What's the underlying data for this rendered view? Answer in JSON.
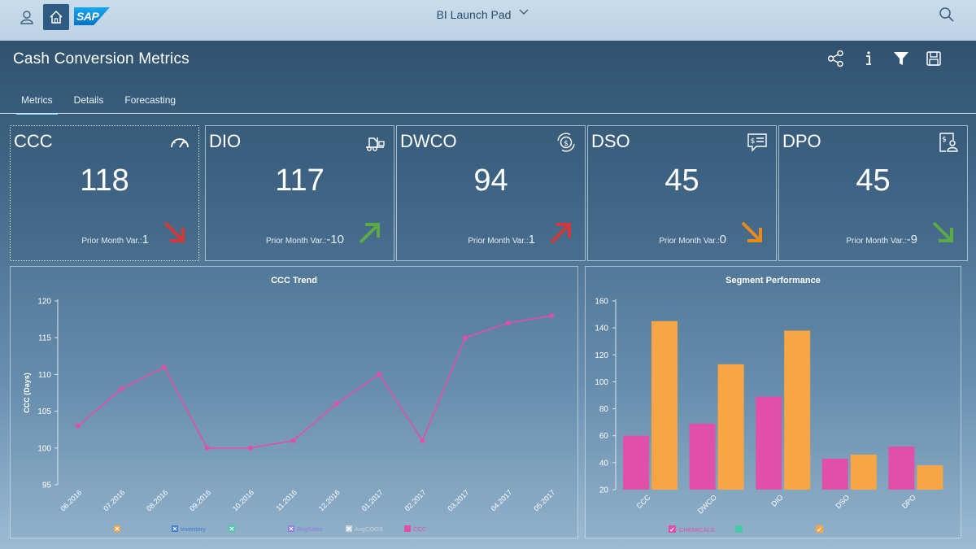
{
  "shell": {
    "title": "BI Launch Pad",
    "logo": "SAP",
    "user_icon": "user-icon",
    "home_icon": "home-icon",
    "search_icon": "search-icon",
    "chevron_icon": "chevron-down-icon",
    "home_bg": "#2f5b82"
  },
  "page": {
    "title": "Cash Conversion Metrics",
    "actions": [
      "share-icon",
      "info-icon",
      "filter-icon",
      "save-icon"
    ]
  },
  "tabs": [
    {
      "label": "Metrics",
      "active": true
    },
    {
      "label": "Details",
      "active": false
    },
    {
      "label": "Forecasting",
      "active": false
    }
  ],
  "kpis": [
    {
      "title": "CCC",
      "value": "118",
      "var_label": "Prior Month Var.:",
      "var_value": "1",
      "icon": "gauge-icon",
      "trend": "down",
      "color": "#d23a3a"
    },
    {
      "title": "DIO",
      "value": "117",
      "var_label": "Prior Month Var.:",
      "var_value": "-10",
      "icon": "forklift-icon",
      "trend": "up",
      "color": "#5aaa46"
    },
    {
      "title": "DWCO",
      "value": "94",
      "var_label": "Prior Month Var.:",
      "var_value": "1",
      "icon": "money-cycle-icon",
      "trend": "up",
      "color": "#d23a3a"
    },
    {
      "title": "DSO",
      "value": "45",
      "var_label": "Prior Month Var.:",
      "var_value": "0",
      "icon": "invoice-message-icon",
      "trend": "down",
      "color": "#e98a1a"
    },
    {
      "title": "DPO",
      "value": "45",
      "var_label": "Prior Month Var.:",
      "var_value": "-9",
      "icon": "vendor-payment-icon",
      "trend": "down",
      "color": "#5aaa46"
    }
  ],
  "chart_data": [
    {
      "type": "line",
      "title": "CCC Trend",
      "xlabel": "",
      "ylabel": "CCC (Days)",
      "categories": [
        "06.2016",
        "07.2016",
        "08.2016",
        "09.2016",
        "10.2016",
        "11.2016",
        "12.2016",
        "01.2017",
        "02.2017",
        "03.2017",
        "04.2017",
        "05.2017"
      ],
      "series": [
        {
          "name": "CCC",
          "color": "#e050a8",
          "values": [
            103,
            108,
            111,
            100,
            100,
            101,
            106,
            110,
            101,
            115,
            117,
            118
          ]
        }
      ],
      "ylim": [
        95,
        120
      ],
      "yticks": [
        95,
        100,
        105,
        110,
        115,
        120
      ],
      "legend": [
        {
          "label": "",
          "color": "#f0a64a",
          "checked": false
        },
        {
          "label": "Inventory",
          "color": "#3a7bd5",
          "checked": false
        },
        {
          "label": "",
          "color": "#48c9a4",
          "checked": false
        },
        {
          "label": "AvgSales",
          "color": "#8c7be0",
          "checked": false
        },
        {
          "label": "AvgCOGS",
          "color": "#c9d2dc",
          "checked": false
        },
        {
          "label": "CCC",
          "color": "#e050a8",
          "checked": true
        }
      ],
      "legend_position": "bottom"
    },
    {
      "type": "bar",
      "title": "Segment Performance",
      "categories": [
        "CCC",
        "DWCO",
        "DIO",
        "DSO",
        "DPO"
      ],
      "series": [
        {
          "name": "CHEMICALS",
          "color": "#e050a8",
          "values": [
            60,
            69,
            89,
            43,
            52
          ]
        },
        {
          "name": "",
          "color": "#f7a545",
          "values": [
            145,
            113,
            138,
            46,
            38
          ]
        }
      ],
      "ylim": [
        20,
        160
      ],
      "yticks": [
        20,
        40,
        60,
        80,
        100,
        120,
        140,
        160
      ],
      "legend": [
        {
          "label": "CHEMICALS",
          "color": "#e050a8",
          "checked": true
        },
        {
          "label": "",
          "color": "#48c9a4",
          "checked": false
        },
        {
          "label": "",
          "color": "#f7a545",
          "checked": true
        }
      ],
      "legend_position": "bottom"
    }
  ]
}
